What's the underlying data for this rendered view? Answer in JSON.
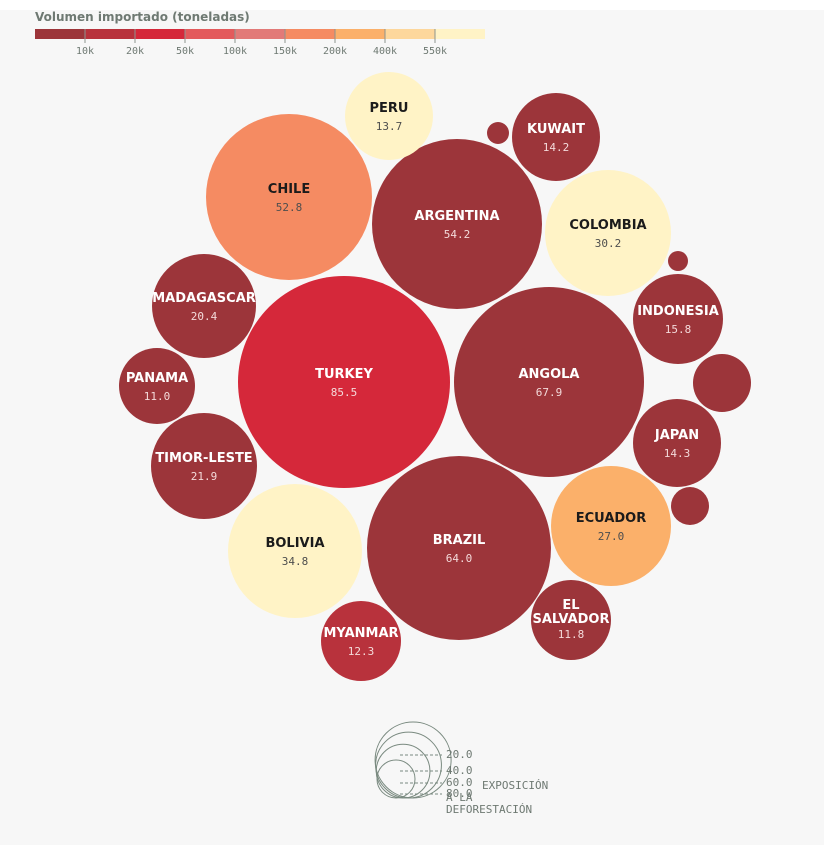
{
  "legend": {
    "title": "Volumen importado (toneladas)",
    "bins": [
      {
        "color": "#9c353a",
        "label": ""
      },
      {
        "color": "#b8323c",
        "label": "10k"
      },
      {
        "color": "#d5283a",
        "label": "20k"
      },
      {
        "color": "#e35a5c",
        "label": "50k"
      },
      {
        "color": "#e27a78",
        "label": "100k"
      },
      {
        "color": "#f58b62",
        "label": "150k"
      },
      {
        "color": "#fbb06a",
        "label": "200k"
      },
      {
        "color": "#fdd79c",
        "label": "400k"
      },
      {
        "color": "#fff3c6",
        "label": "550k"
      }
    ]
  },
  "size_legend": {
    "values": [
      20.0,
      40.0,
      60.0,
      80.0
    ],
    "labels": [
      "20.0",
      "40.0",
      "60.0",
      "80.0"
    ],
    "caption": [
      "EXPOSICIÓN",
      "A LA",
      "DEFORESTACIÓN"
    ]
  },
  "chart_data": {
    "type": "bubble",
    "title": "",
    "size_measure": "EXPOSICIÓN A LA DEFORESTACIÓN",
    "color_measure": "Volumen importado (toneladas)",
    "bubbles": [
      {
        "name": "TURKEY",
        "value": 85.5,
        "color": "#d5283a"
      },
      {
        "name": "ANGOLA",
        "value": 67.9,
        "color": "#9c353a"
      },
      {
        "name": "BRAZIL",
        "value": 64.0,
        "color": "#9c353a"
      },
      {
        "name": "ARGENTINA",
        "value": 54.2,
        "color": "#9c353a"
      },
      {
        "name": "CHILE",
        "value": 52.8,
        "color": "#f58b62"
      },
      {
        "name": "BOLIVIA",
        "value": 34.8,
        "color": "#fff3c6"
      },
      {
        "name": "COLOMBIA",
        "value": 30.2,
        "color": "#fff3c6"
      },
      {
        "name": "ECUADOR",
        "value": 27.0,
        "color": "#fbb06a"
      },
      {
        "name": "TIMOR-LESTE",
        "value": 21.9,
        "color": "#9c353a"
      },
      {
        "name": "MADAGASCAR",
        "value": 20.4,
        "color": "#9c353a"
      },
      {
        "name": "INDONESIA",
        "value": 15.8,
        "color": "#9c353a"
      },
      {
        "name": "JAPAN",
        "value": 14.3,
        "color": "#9c353a"
      },
      {
        "name": "KUWAIT",
        "value": 14.2,
        "color": "#9c353a"
      },
      {
        "name": "PERU",
        "value": 13.7,
        "color": "#fff3c6"
      },
      {
        "name": "MYANMAR",
        "value": 12.3,
        "color": "#b8323c"
      },
      {
        "name": "EL SALVADOR",
        "value": 11.8,
        "color": "#9c353a"
      },
      {
        "name": "PANAMA",
        "value": 11.0,
        "color": "#9c353a"
      },
      {
        "name": "",
        "value": 7.0,
        "color": "#9c353a"
      },
      {
        "name": "",
        "value": 3.0,
        "color": "#9c353a"
      },
      {
        "name": "",
        "value": 2.0,
        "color": "#9c353a"
      },
      {
        "name": "",
        "value": 1.0,
        "color": "#9c353a"
      }
    ]
  }
}
